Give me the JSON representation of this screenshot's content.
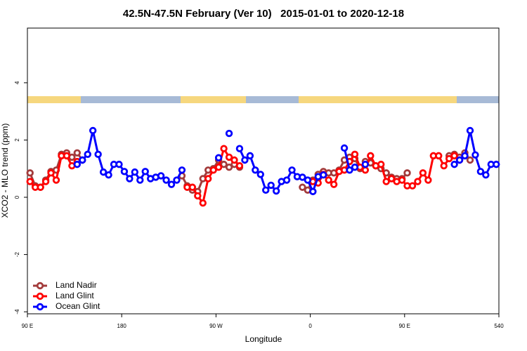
{
  "chart_data": {
    "type": "line",
    "title": "42.5N-47.5N February (Ver 10)   2015-01-01 to 2020-12-18",
    "xlabel": "Longitude",
    "ylabel": "XCO2 - MLO trend (ppm)",
    "xlim": [
      90,
      540
    ],
    "ylim": [
      -4.07,
      5.91
    ],
    "xticks": [
      {
        "value": 90,
        "label": "90 E"
      },
      180,
      {
        "value": 270,
        "label": "90 W"
      },
      {
        "value": 360,
        "label": "0"
      },
      {
        "value": 450,
        "label": "90 E"
      },
      540
    ],
    "yticks": [
      -4,
      -2,
      0,
      2,
      4
    ],
    "legend": "bottom-left",
    "series": [
      {
        "name": "Land Nadir",
        "color": "#a33b3b",
        "x": [
          92.5,
          97.5,
          102.5,
          107.5,
          112.5,
          117.5,
          122.5,
          127.5,
          132.5,
          137.5,
          142.5,
          147.5,
          237.5,
          242.5,
          247.5,
          252.5,
          257.5,
          262.5,
          267.5,
          272.5,
          277.5,
          282.5,
          287.5,
          292.5,
          297.5,
          352.5,
          357.5,
          362.5,
          367.5,
          372.5,
          377.5,
          382.5,
          387.5,
          392.5,
          397.5,
          402.5,
          407.5,
          412.5,
          417.5,
          422.5,
          427.5,
          432.5,
          437.5,
          442.5,
          447.5,
          452.5,
          457.5,
          492.5,
          497.5,
          502.5,
          507.5,
          512.5
        ],
        "values": [
          0.85,
          0.4,
          0.35,
          0.6,
          0.9,
          0.95,
          1.5,
          1.55,
          1.4,
          1.55,
          1.3,
          null,
          0.75,
          0.4,
          0.25,
          0.2,
          0.65,
          0.95,
          1.0,
          1.3,
          1.15,
          1.05,
          1.15,
          1.05,
          null,
          0.35,
          0.25,
          0.6,
          0.8,
          0.9,
          0.85,
          0.85,
          0.95,
          1.3,
          1.4,
          1.35,
          1.0,
          1.25,
          1.2,
          1.1,
          1.0,
          0.85,
          0.7,
          0.65,
          0.65,
          0.85,
          null,
          1.45,
          1.5,
          1.4,
          1.55,
          1.3
        ]
      },
      {
        "name": "Land Glint",
        "color": "#ff0000",
        "x": [
          92.5,
          97.5,
          102.5,
          107.5,
          112.5,
          117.5,
          122.5,
          127.5,
          132.5,
          137.5,
          142.5,
          242.5,
          247.5,
          252.5,
          257.5,
          262.5,
          267.5,
          272.5,
          277.5,
          282.5,
          287.5,
          292.5,
          297.5,
          362.5,
          367.5,
          372.5,
          377.5,
          382.5,
          387.5,
          392.5,
          397.5,
          402.5,
          407.5,
          412.5,
          417.5,
          422.5,
          427.5,
          432.5,
          437.5,
          442.5,
          447.5,
          452.5,
          457.5,
          462.5,
          467.5,
          472.5,
          477.5,
          482.5,
          487.5,
          492.5,
          497.5,
          502.5
        ],
        "values": [
          0.55,
          0.35,
          0.35,
          0.55,
          0.85,
          0.6,
          1.45,
          1.45,
          1.1,
          1.25,
          null,
          0.35,
          0.35,
          0.05,
          -0.2,
          0.65,
          0.95,
          1.05,
          1.7,
          1.4,
          1.3,
          1.1,
          null,
          0.55,
          0.5,
          0.8,
          0.6,
          0.45,
          0.9,
          0.95,
          1.25,
          1.5,
          1.05,
          0.95,
          1.45,
          1.1,
          1.15,
          0.55,
          0.65,
          0.55,
          0.6,
          0.4,
          0.4,
          0.55,
          0.85,
          0.6,
          1.45,
          1.45,
          1.1,
          1.35,
          1.45,
          1.3
        ]
      },
      {
        "name": "Ocean Glint",
        "color": "#0000ff",
        "x": [
          137.5,
          142.5,
          147.5,
          152.5,
          157.5,
          162.5,
          167.5,
          172.5,
          177.5,
          182.5,
          187.5,
          192.5,
          197.5,
          202.5,
          207.5,
          212.5,
          217.5,
          222.5,
          227.5,
          232.5,
          237.5,
          242.5,
          272.5,
          277.5,
          282.5,
          287.5,
          292.5,
          297.5,
          302.5,
          307.5,
          312.5,
          317.5,
          322.5,
          327.5,
          332.5,
          337.5,
          342.5,
          347.5,
          352.5,
          357.5,
          362.5,
          367.5,
          372.5,
          377.5,
          392.5,
          397.5,
          402.5,
          407.5,
          412.5,
          417.5,
          497.5,
          502.5,
          507.5,
          512.5,
          517.5,
          522.5,
          527.5,
          532.5,
          537.5
        ],
        "values": [
          1.15,
          1.3,
          1.5,
          2.33,
          1.5,
          0.88,
          0.78,
          1.15,
          1.15,
          0.9,
          0.65,
          0.88,
          0.6,
          0.9,
          0.65,
          0.7,
          0.75,
          0.6,
          0.45,
          0.6,
          0.95,
          null,
          1.38,
          null,
          2.23,
          null,
          1.7,
          1.3,
          1.45,
          0.95,
          0.8,
          0.25,
          0.42,
          0.22,
          0.55,
          0.6,
          0.95,
          0.72,
          0.7,
          0.6,
          0.2,
          0.72,
          0.78,
          null,
          1.72,
          0.95,
          1.05,
          null,
          1.15,
          null,
          1.15,
          1.3,
          1.45,
          2.33,
          1.48,
          0.9,
          0.78,
          1.15,
          1.15
        ]
      }
    ]
  }
}
